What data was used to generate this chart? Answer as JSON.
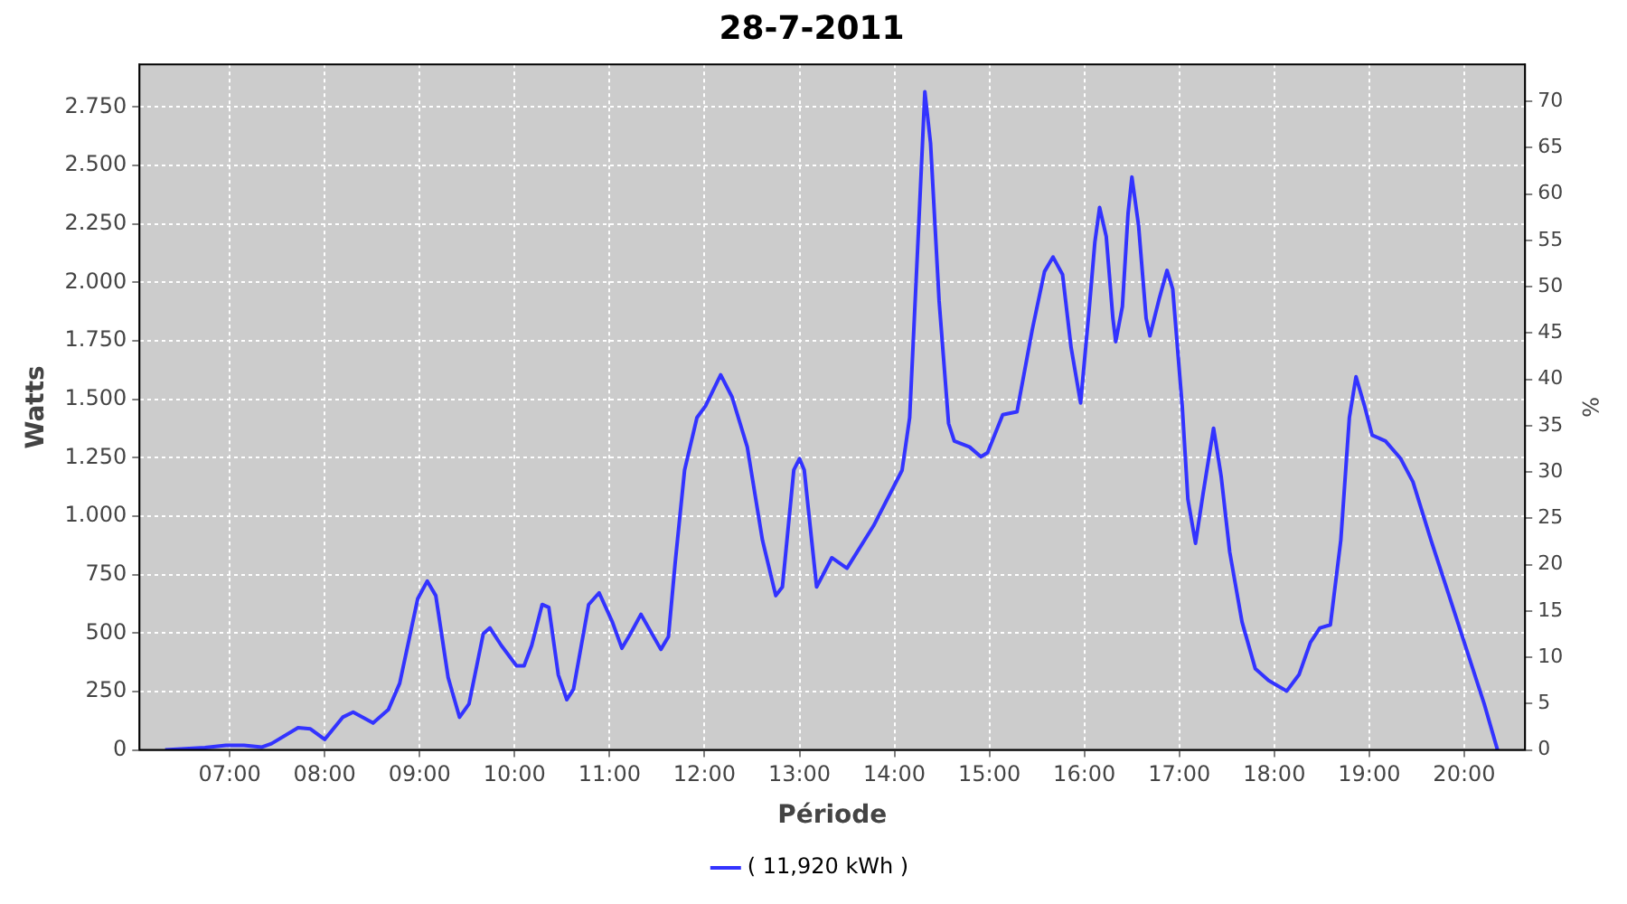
{
  "chart_data": {
    "type": "line",
    "title": "28-7-2011",
    "xlabel": "Période",
    "ylabel": "Watts",
    "y2label": "%",
    "xlim": [
      6.05,
      20.64
    ],
    "xticks": [
      {
        "value": 7,
        "label": "07:00"
      },
      {
        "value": 8,
        "label": "08:00"
      },
      {
        "value": 9,
        "label": "09:00"
      },
      {
        "value": 10,
        "label": "10:00"
      },
      {
        "value": 11,
        "label": "11:00"
      },
      {
        "value": 12,
        "label": "12:00"
      },
      {
        "value": 13,
        "label": "13:00"
      },
      {
        "value": 14,
        "label": "14:00"
      },
      {
        "value": 15,
        "label": "15:00"
      },
      {
        "value": 16,
        "label": "16:00"
      },
      {
        "value": 17,
        "label": "17:00"
      },
      {
        "value": 18,
        "label": "18:00"
      },
      {
        "value": 19,
        "label": "19:00"
      },
      {
        "value": 20,
        "label": "20:00"
      }
    ],
    "ylim": [
      0,
      2932
    ],
    "yticks": [
      0,
      250,
      500,
      750,
      {
        "value": 1000,
        "label": "1.000"
      },
      {
        "value": 1250,
        "label": "1.250"
      },
      {
        "value": 1500,
        "label": "1.500"
      },
      {
        "value": 1750,
        "label": "1.750"
      },
      {
        "value": 2000,
        "label": "2.000"
      },
      {
        "value": 2250,
        "label": "2.250"
      },
      {
        "value": 2500,
        "label": "2.500"
      },
      {
        "value": 2750,
        "label": "2.750"
      }
    ],
    "y2lim": [
      0,
      74
    ],
    "y2ticks": [
      0,
      5,
      10,
      15,
      20,
      25,
      30,
      35,
      40,
      45,
      50,
      55,
      60,
      65,
      70
    ],
    "grid": true,
    "legend": "bottom",
    "marker": "none",
    "line_style": "solid",
    "series": [
      {
        "name": "( 11,920 kWh )",
        "color": "#3333ff",
        "x": [
          6.32,
          6.74,
          6.96,
          7.15,
          7.34,
          7.44,
          7.72,
          7.85,
          8.0,
          8.19,
          8.3,
          8.51,
          8.67,
          8.79,
          8.98,
          9.08,
          9.17,
          9.3,
          9.42,
          9.52,
          9.67,
          9.74,
          9.86,
          10.02,
          10.1,
          10.18,
          10.29,
          10.36,
          10.46,
          10.55,
          10.62,
          10.78,
          10.89,
          11.03,
          11.13,
          11.22,
          11.33,
          11.54,
          11.62,
          11.69,
          11.79,
          11.92,
          12.01,
          12.17,
          12.29,
          12.45,
          12.61,
          12.75,
          12.82,
          12.94,
          13.0,
          13.05,
          13.18,
          13.34,
          13.5,
          13.78,
          13.97,
          14.08,
          14.16,
          14.25,
          14.32,
          14.38,
          14.47,
          14.57,
          14.63,
          14.79,
          14.91,
          14.98,
          15.14,
          15.29,
          15.45,
          15.58,
          15.67,
          15.77,
          15.86,
          15.96,
          16.05,
          16.11,
          16.16,
          16.23,
          16.3,
          16.33,
          16.4,
          16.46,
          16.5,
          16.57,
          16.65,
          16.69,
          16.79,
          16.87,
          16.93,
          17.03,
          17.09,
          17.17,
          17.25,
          17.36,
          17.44,
          17.53,
          17.66,
          17.8,
          17.94,
          18.13,
          18.26,
          18.38,
          18.48,
          18.59,
          18.7,
          18.79,
          18.86,
          18.95,
          19.03,
          19.17,
          19.33,
          19.46,
          19.65,
          19.84,
          20.03,
          20.21,
          20.35
        ],
        "values": [
          0,
          10,
          20,
          20,
          12,
          27,
          95,
          90,
          45,
          140,
          162,
          115,
          172,
          285,
          647,
          722,
          660,
          310,
          140,
          197,
          497,
          522,
          447,
          360,
          360,
          447,
          622,
          610,
          322,
          215,
          260,
          622,
          672,
          547,
          435,
          497,
          580,
          430,
          485,
          797,
          1197,
          1421,
          1471,
          1604,
          1509,
          1296,
          897,
          660,
          697,
          1197,
          1246,
          1197,
          697,
          822,
          777,
          959,
          1109,
          1196,
          1421,
          2196,
          2815,
          2595,
          1921,
          1396,
          1321,
          1296,
          1254,
          1271,
          1434,
          1446,
          1796,
          2046,
          2108,
          2033,
          1721,
          1484,
          1883,
          2171,
          2320,
          2196,
          1846,
          1746,
          1896,
          2296,
          2450,
          2245,
          1846,
          1771,
          1933,
          2051,
          1971,
          1471,
          1072,
          884,
          1097,
          1376,
          1171,
          847,
          547,
          347,
          297,
          252,
          322,
          460,
          522,
          535,
          897,
          1421,
          1596,
          1471,
          1346,
          1321,
          1246,
          1146,
          897,
          660,
          422,
          197,
          0
        ]
      }
    ]
  }
}
